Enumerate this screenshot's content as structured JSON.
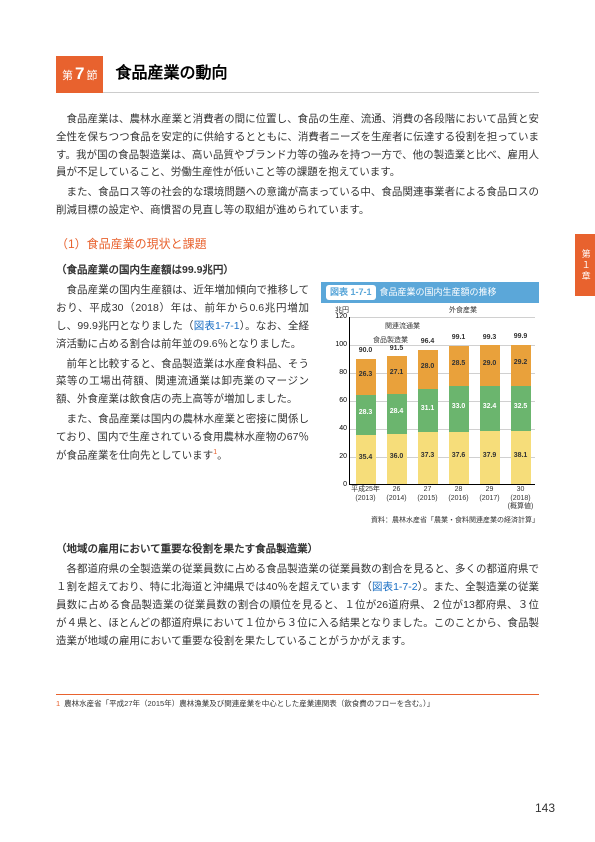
{
  "section": {
    "pre": "第",
    "num": "7",
    "post": "節",
    "title": "食品産業の動向"
  },
  "intro": {
    "p1": "食品産業は、農林水産業と消費者の間に位置し、食品の生産、流通、消費の各段階において品質と安全性を保ちつつ食品を安定的に供給するとともに、消費者ニーズを生産者に伝達する役割を担っています。我が国の食品製造業は、高い品質やブランド力等の強みを持つ一方で、他の製造業と比べ、雇用人員が不足していること、労働生産性が低いこと等の課題を抱えています。",
    "p2": "また、食品ロス等の社会的な環境問題への意識が高まっている中、食品関連事業者による食品ロスの削減目標の設定や、商慣習の見直し等の取組が進められています。"
  },
  "subsection1": "（1）食品産業の現状と課題",
  "block1": {
    "head": "（食品産業の国内生産額は99.9兆円）",
    "p1a": "食品産業の国内生産額は、近年増加傾向で推移しており、平成30（2018）年は、前年から0.6兆円増加し、99.9兆円となりました（",
    "p1link": "図表1-7-1",
    "p1b": "）。なお、全経済活動に占める割合は前年並の9.6％となりました。",
    "p2": "前年と比較すると、食品製造業は水産食料品、そう菜等の工場出荷額、関連流通業は卸売業のマージン額、外食産業は飲食店の売上高等が増加しました。",
    "p3a": "また、食品産業は国内の農林水産業と密接に関係しており、国内で生産されている食用農林水産物の67％が食品産業を仕向先としています",
    "p3sup": "1",
    "p3b": "。"
  },
  "chart": {
    "fig_no": "図表 1-7-1",
    "title": "食品産業の国内生産額の推移",
    "y_unit": "兆円",
    "legend": {
      "a": "外食産業",
      "b": "関連流通業",
      "c": "食品製造業"
    },
    "ylim": [
      0,
      120
    ],
    "ytick_step": 20,
    "yticks": [
      "0",
      "20",
      "40",
      "60",
      "80",
      "100",
      "120"
    ],
    "colors": {
      "a": "#e9a13b",
      "b": "#6bb56e",
      "c": "#f6dd7a",
      "grid": "#d0d0d0",
      "axis": "#000000"
    },
    "bars": [
      {
        "xlabel1": "平成25年",
        "xlabel2": "(2013)",
        "total": "90.0",
        "a": "26.3",
        "b": "28.3",
        "c": "35.4"
      },
      {
        "xlabel1": "26",
        "xlabel2": "(2014)",
        "total": "91.5",
        "a": "27.1",
        "b": "28.4",
        "c": "36.0"
      },
      {
        "xlabel1": "27",
        "xlabel2": "(2015)",
        "total": "96.4",
        "a": "28.0",
        "b": "31.1",
        "c": "37.3"
      },
      {
        "xlabel1": "28",
        "xlabel2": "(2016)",
        "total": "99.1",
        "a": "28.5",
        "b": "33.0",
        "c": "37.6"
      },
      {
        "xlabel1": "29",
        "xlabel2": "(2017)",
        "total": "99.3",
        "a": "29.0",
        "b": "32.4",
        "c": "37.9"
      },
      {
        "xlabel1": "30",
        "xlabel2": "(2018)",
        "total": "99.9",
        "a": "29.2",
        "b": "32.5",
        "c": "38.1",
        "extra": "(概算値)"
      }
    ],
    "source": "資料：農林水産省「農業・食料関連産業の経済計算」"
  },
  "block2": {
    "head": "（地域の雇用において重要な役割を果たす食品製造業）",
    "p1a": "各都道府県の全製造業の従業員数に占める食品製造業の従業員数の割合を見ると、多くの都道府県で１割を超えており、特に北海道と沖縄県では40％を超えています（",
    "p1link": "図表1-7-2",
    "p1b": "）。また、全製造業の従業員数に占める食品製造業の従業員数の割合の順位を見ると、１位が26道府県、２位が13都府県、３位が４県と、ほとんどの都道府県において１位から３位に入る結果となりました。このことから、食品製造業が地域の雇用において重要な役割を果たしていることがうかがえます。"
  },
  "footnote": {
    "no": "1",
    "text": "農林水産省「平成27年（2015年）農林漁業及び関連産業を中心とした産業連関表（飲食費のフローを含む。）」"
  },
  "side_tab": "第１章",
  "page_no": "143"
}
